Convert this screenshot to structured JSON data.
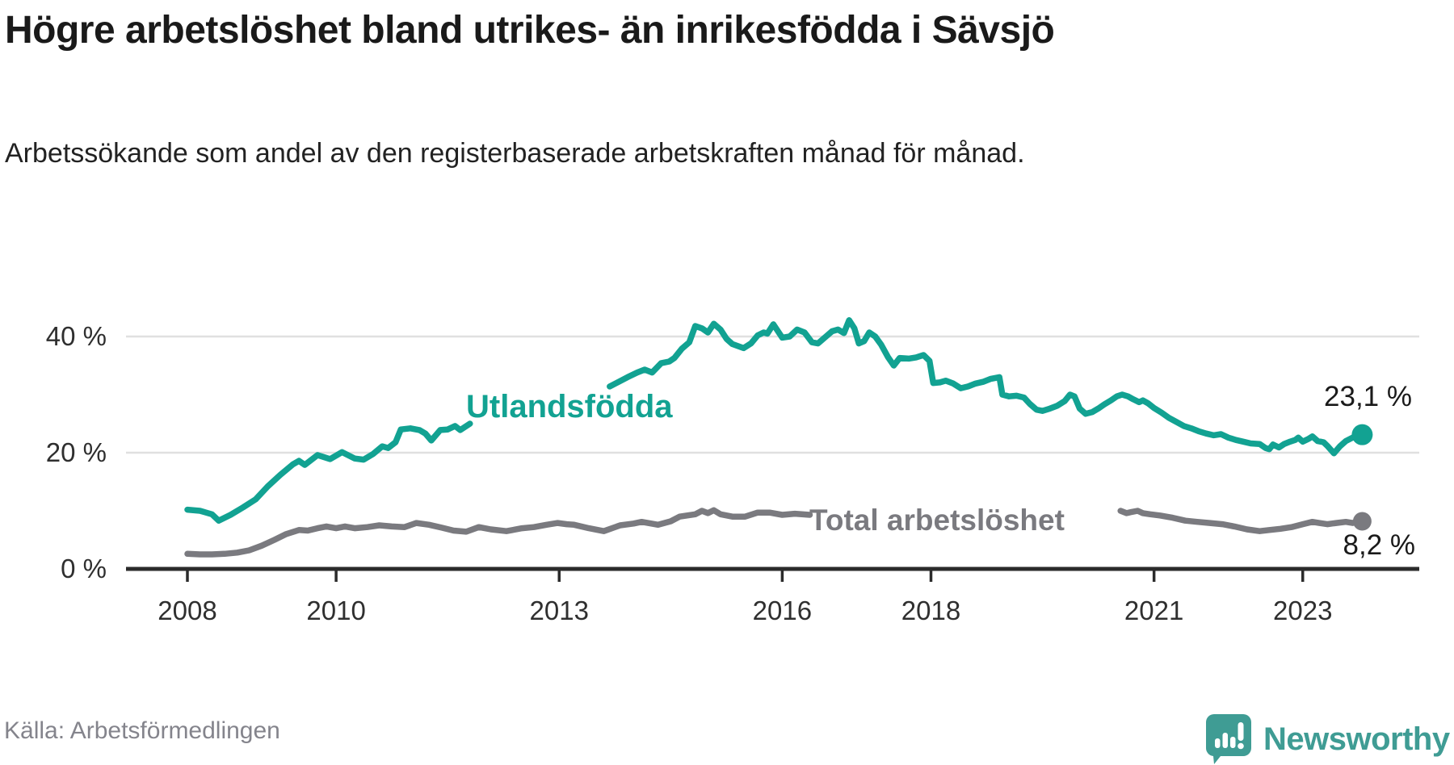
{
  "title": "Högre arbetslöshet bland utrikes- än inrikesfödda i Sävsjö",
  "subtitle": "Arbetssökande som andel av den registerbaserade arbetskraften månad för månad.",
  "source": "Källa: Arbetsförmedlingen",
  "brand": {
    "name": "Newsworthy",
    "color": "#3f9c94",
    "icon": "newsworthy-speech-bubble-bar-chart-icon"
  },
  "colors": {
    "foreign_born": "#12a292",
    "total": "#7a7a7f",
    "grid": "#e0e0e0",
    "axis": "#2b2b2b",
    "tick_text": "#2f2f2f",
    "annotation": "#1a1a1a"
  },
  "chart_data": {
    "type": "line",
    "title": "Högre arbetslöshet bland utrikes- än inrikesfödda i Sävsjö",
    "xlabel": "",
    "ylabel": "Arbetssökande som andel av den registerbaserade arbetskraften",
    "grid": true,
    "legend_position": "inline-labels-on-lines",
    "x_axis": {
      "range": [
        2007.18,
        2024.57
      ],
      "ticks": [
        {
          "value": 2008,
          "label": "2008"
        },
        {
          "value": 2010,
          "label": "2010"
        },
        {
          "value": 2013,
          "label": "2013"
        },
        {
          "value": 2016,
          "label": "2016"
        },
        {
          "value": 2018,
          "label": "2018"
        },
        {
          "value": 2021,
          "label": "2021"
        },
        {
          "value": 2023,
          "label": "2023"
        }
      ]
    },
    "y_axis": {
      "range": [
        0,
        50.7
      ],
      "unit": "%",
      "ticks": [
        {
          "value": 0,
          "label": "0 %"
        },
        {
          "value": 20,
          "label": "20 %"
        },
        {
          "value": 40,
          "label": "40 %"
        }
      ]
    },
    "series": [
      {
        "name": "Utlandsfödda",
        "color": "#12a292",
        "line_width": 7.5,
        "dot_radius": 13,
        "end_value": 23.1,
        "end_label": "23,1 %",
        "note": "line interrupted by its name label between 2011.8 and 2013.68",
        "segments": [
          [
            [
              2008.0,
              10.2
            ],
            [
              2008.17,
              10.0
            ],
            [
              2008.33,
              9.4
            ],
            [
              2008.42,
              8.3
            ],
            [
              2008.58,
              9.3
            ],
            [
              2008.75,
              10.6
            ],
            [
              2008.92,
              12.0
            ],
            [
              2009.08,
              14.2
            ],
            [
              2009.25,
              16.2
            ],
            [
              2009.42,
              18.0
            ],
            [
              2009.5,
              18.6
            ],
            [
              2009.58,
              17.9
            ],
            [
              2009.75,
              19.6
            ],
            [
              2009.92,
              18.9
            ],
            [
              2010.08,
              20.1
            ],
            [
              2010.25,
              19.0
            ],
            [
              2010.37,
              18.8
            ],
            [
              2010.5,
              19.8
            ],
            [
              2010.62,
              21.1
            ],
            [
              2010.7,
              20.8
            ],
            [
              2010.8,
              21.8
            ],
            [
              2010.87,
              24.0
            ],
            [
              2011.0,
              24.2
            ],
            [
              2011.12,
              23.9
            ],
            [
              2011.2,
              23.3
            ],
            [
              2011.28,
              22.1
            ],
            [
              2011.4,
              23.9
            ],
            [
              2011.5,
              24.0
            ],
            [
              2011.6,
              24.6
            ],
            [
              2011.67,
              23.9
            ],
            [
              2011.8,
              25.0
            ]
          ],
          [
            [
              2013.68,
              31.4
            ],
            [
              2013.8,
              32.2
            ],
            [
              2013.92,
              33.0
            ],
            [
              2014.05,
              33.8
            ],
            [
              2014.15,
              34.3
            ],
            [
              2014.25,
              33.8
            ],
            [
              2014.37,
              35.4
            ],
            [
              2014.48,
              35.7
            ],
            [
              2014.55,
              36.3
            ],
            [
              2014.65,
              37.9
            ],
            [
              2014.75,
              39.0
            ],
            [
              2014.83,
              41.8
            ],
            [
              2014.92,
              41.4
            ],
            [
              2015.0,
              40.7
            ],
            [
              2015.08,
              42.2
            ],
            [
              2015.17,
              41.2
            ],
            [
              2015.25,
              39.6
            ],
            [
              2015.33,
              38.7
            ],
            [
              2015.48,
              38.0
            ],
            [
              2015.58,
              38.8
            ],
            [
              2015.67,
              40.2
            ],
            [
              2015.75,
              40.7
            ],
            [
              2015.8,
              40.5
            ],
            [
              2015.88,
              42.1
            ],
            [
              2016.0,
              39.8
            ],
            [
              2016.1,
              40.0
            ],
            [
              2016.2,
              41.2
            ],
            [
              2016.3,
              40.7
            ],
            [
              2016.4,
              39.0
            ],
            [
              2016.48,
              38.8
            ],
            [
              2016.57,
              39.8
            ],
            [
              2016.67,
              40.9
            ],
            [
              2016.75,
              41.2
            ],
            [
              2016.83,
              40.6
            ],
            [
              2016.9,
              42.8
            ],
            [
              2016.97,
              41.4
            ],
            [
              2017.03,
              38.8
            ],
            [
              2017.1,
              39.2
            ],
            [
              2017.17,
              40.7
            ],
            [
              2017.25,
              40.0
            ],
            [
              2017.33,
              38.6
            ],
            [
              2017.42,
              36.5
            ],
            [
              2017.5,
              35.0
            ],
            [
              2017.58,
              36.3
            ],
            [
              2017.7,
              36.2
            ],
            [
              2017.8,
              36.4
            ],
            [
              2017.9,
              36.8
            ],
            [
              2017.98,
              35.8
            ],
            [
              2018.03,
              32.0
            ],
            [
              2018.12,
              32.1
            ],
            [
              2018.2,
              32.4
            ],
            [
              2018.3,
              31.9
            ],
            [
              2018.4,
              31.1
            ],
            [
              2018.5,
              31.4
            ],
            [
              2018.6,
              31.9
            ],
            [
              2018.7,
              32.2
            ],
            [
              2018.8,
              32.7
            ],
            [
              2018.92,
              33.0
            ],
            [
              2018.96,
              30.0
            ],
            [
              2019.05,
              29.7
            ],
            [
              2019.15,
              29.8
            ],
            [
              2019.25,
              29.5
            ],
            [
              2019.33,
              28.4
            ],
            [
              2019.42,
              27.4
            ],
            [
              2019.5,
              27.2
            ],
            [
              2019.6,
              27.6
            ],
            [
              2019.7,
              28.1
            ],
            [
              2019.8,
              28.9
            ],
            [
              2019.87,
              30.0
            ],
            [
              2019.93,
              29.7
            ],
            [
              2020.0,
              27.6
            ],
            [
              2020.08,
              26.7
            ],
            [
              2020.17,
              27.0
            ],
            [
              2020.25,
              27.6
            ],
            [
              2020.33,
              28.3
            ],
            [
              2020.42,
              29.0
            ],
            [
              2020.5,
              29.7
            ],
            [
              2020.57,
              30.0
            ],
            [
              2020.65,
              29.7
            ],
            [
              2020.72,
              29.2
            ],
            [
              2020.8,
              28.7
            ],
            [
              2020.85,
              29.0
            ],
            [
              2020.92,
              28.5
            ],
            [
              2021.0,
              27.7
            ],
            [
              2021.1,
              26.9
            ],
            [
              2021.2,
              26.0
            ],
            [
              2021.3,
              25.3
            ],
            [
              2021.4,
              24.6
            ],
            [
              2021.5,
              24.2
            ],
            [
              2021.6,
              23.7
            ],
            [
              2021.7,
              23.3
            ],
            [
              2021.8,
              23.0
            ],
            [
              2021.9,
              23.2
            ],
            [
              2022.0,
              22.6
            ],
            [
              2022.1,
              22.2
            ],
            [
              2022.2,
              21.9
            ],
            [
              2022.3,
              21.6
            ],
            [
              2022.42,
              21.5
            ],
            [
              2022.5,
              20.8
            ],
            [
              2022.55,
              20.6
            ],
            [
              2022.6,
              21.4
            ],
            [
              2022.68,
              20.9
            ],
            [
              2022.75,
              21.5
            ],
            [
              2022.83,
              21.9
            ],
            [
              2022.9,
              22.2
            ],
            [
              2022.94,
              22.6
            ],
            [
              2023.0,
              21.9
            ],
            [
              2023.08,
              22.4
            ],
            [
              2023.13,
              22.8
            ],
            [
              2023.2,
              22.0
            ],
            [
              2023.28,
              21.8
            ],
            [
              2023.33,
              21.2
            ],
            [
              2023.42,
              19.9
            ],
            [
              2023.5,
              21.1
            ],
            [
              2023.58,
              22.0
            ],
            [
              2023.67,
              22.6
            ],
            [
              2023.73,
              22.8
            ],
            [
              2023.8,
              23.1
            ]
          ]
        ]
      },
      {
        "name": "Total arbetslöshet",
        "color": "#7a7a7f",
        "line_width": 7.5,
        "dot_radius": 11.5,
        "end_value": 8.2,
        "end_label": "8,2 %",
        "note": "line interrupted by its name label between 2016.37 and 2020.55",
        "segments": [
          [
            [
              2008.0,
              2.6
            ],
            [
              2008.17,
              2.5
            ],
            [
              2008.33,
              2.5
            ],
            [
              2008.5,
              2.6
            ],
            [
              2008.67,
              2.8
            ],
            [
              2008.83,
              3.2
            ],
            [
              2009.0,
              4.0
            ],
            [
              2009.17,
              5.0
            ],
            [
              2009.33,
              6.0
            ],
            [
              2009.5,
              6.7
            ],
            [
              2009.62,
              6.6
            ],
            [
              2009.75,
              7.0
            ],
            [
              2009.87,
              7.3
            ],
            [
              2010.0,
              7.0
            ],
            [
              2010.12,
              7.3
            ],
            [
              2010.25,
              7.0
            ],
            [
              2010.42,
              7.2
            ],
            [
              2010.58,
              7.5
            ],
            [
              2010.75,
              7.3
            ],
            [
              2010.92,
              7.2
            ],
            [
              2011.08,
              7.9
            ],
            [
              2011.25,
              7.6
            ],
            [
              2011.42,
              7.1
            ],
            [
              2011.58,
              6.6
            ],
            [
              2011.75,
              6.4
            ],
            [
              2011.92,
              7.2
            ],
            [
              2012.08,
              6.8
            ],
            [
              2012.29,
              6.5
            ],
            [
              2012.5,
              7.0
            ],
            [
              2012.66,
              7.2
            ],
            [
              2012.83,
              7.6
            ],
            [
              2012.98,
              7.9
            ],
            [
              2013.1,
              7.7
            ],
            [
              2013.2,
              7.6
            ],
            [
              2013.4,
              7.0
            ],
            [
              2013.6,
              6.5
            ],
            [
              2013.82,
              7.5
            ],
            [
              2014.0,
              7.8
            ],
            [
              2014.11,
              8.1
            ],
            [
              2014.33,
              7.6
            ],
            [
              2014.5,
              8.2
            ],
            [
              2014.62,
              9.0
            ],
            [
              2014.83,
              9.4
            ],
            [
              2014.92,
              10.0
            ],
            [
              2015.0,
              9.6
            ],
            [
              2015.08,
              10.1
            ],
            [
              2015.17,
              9.4
            ],
            [
              2015.33,
              9.0
            ],
            [
              2015.5,
              9.0
            ],
            [
              2015.67,
              9.7
            ],
            [
              2015.83,
              9.7
            ],
            [
              2016.0,
              9.3
            ],
            [
              2016.17,
              9.5
            ],
            [
              2016.37,
              9.3
            ]
          ],
          [
            [
              2020.55,
              10.0
            ],
            [
              2020.63,
              9.6
            ],
            [
              2020.7,
              9.8
            ],
            [
              2020.78,
              10.0
            ],
            [
              2020.85,
              9.6
            ],
            [
              2020.95,
              9.4
            ],
            [
              2021.08,
              9.2
            ],
            [
              2021.25,
              8.8
            ],
            [
              2021.42,
              8.3
            ],
            [
              2021.58,
              8.1
            ],
            [
              2021.75,
              7.9
            ],
            [
              2021.92,
              7.7
            ],
            [
              2022.08,
              7.3
            ],
            [
              2022.25,
              6.8
            ],
            [
              2022.42,
              6.5
            ],
            [
              2022.55,
              6.7
            ],
            [
              2022.7,
              6.9
            ],
            [
              2022.85,
              7.2
            ],
            [
              2023.0,
              7.7
            ],
            [
              2023.13,
              8.1
            ],
            [
              2023.22,
              7.9
            ],
            [
              2023.33,
              7.7
            ],
            [
              2023.45,
              7.9
            ],
            [
              2023.58,
              8.1
            ],
            [
              2023.67,
              7.9
            ],
            [
              2023.8,
              8.2
            ]
          ]
        ]
      }
    ]
  }
}
